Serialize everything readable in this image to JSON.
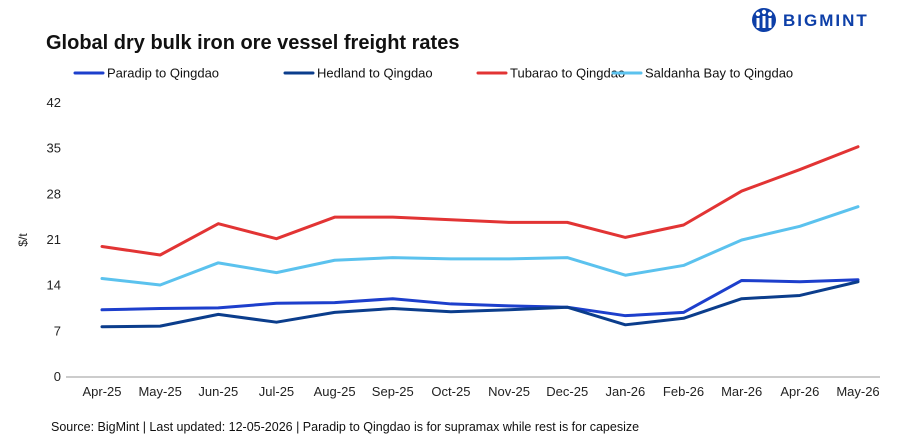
{
  "brand": {
    "name": "BIGMINT",
    "color": "#0d3fa8"
  },
  "source": "Source: BigMint | Last updated: 12-05-2026 | Paradip to Qingdao is for supramax while rest is for capesize",
  "chart_data": {
    "type": "line",
    "title": "Global dry bulk iron ore vessel freight rates",
    "xlabel": "",
    "ylabel": "$/t",
    "categories": [
      "Apr-25",
      "May-25",
      "Jun-25",
      "Jul-25",
      "Aug-25",
      "Sep-25",
      "Oct-25",
      "Nov-25",
      "Dec-25",
      "Jan-26",
      "Feb-26",
      "Mar-26",
      "Apr-26",
      "May-26"
    ],
    "ylim": [
      0,
      42
    ],
    "yticks": [
      0,
      7,
      14,
      21,
      28,
      35,
      42
    ],
    "grid": false,
    "legend": "top",
    "series": [
      {
        "name": "Paradip to Qingdao",
        "color": "#1d3fcc",
        "values": [
          10.3,
          10.5,
          10.6,
          11.3,
          11.4,
          12.0,
          11.2,
          10.9,
          10.7,
          9.4,
          9.9,
          14.8,
          14.6,
          14.9
        ]
      },
      {
        "name": "Hedland to Qingdao",
        "color": "#0b3d8c",
        "values": [
          7.7,
          7.8,
          9.6,
          8.4,
          9.9,
          10.5,
          10.0,
          10.3,
          10.7,
          8.0,
          9.0,
          12.0,
          12.5,
          14.6
        ]
      },
      {
        "name": "Tubarao to Qingdao",
        "color": "#e23434",
        "values": [
          20.0,
          18.7,
          23.5,
          21.2,
          24.5,
          24.5,
          24.1,
          23.7,
          23.7,
          21.4,
          23.3,
          28.5,
          31.8,
          35.3
        ]
      },
      {
        "name": "Saldanha Bay to Qingdao",
        "color": "#5bc2ee",
        "values": [
          15.1,
          14.1,
          17.5,
          16.0,
          17.9,
          18.3,
          18.1,
          18.1,
          18.3,
          15.6,
          17.1,
          21.0,
          23.1,
          26.1
        ]
      }
    ]
  }
}
